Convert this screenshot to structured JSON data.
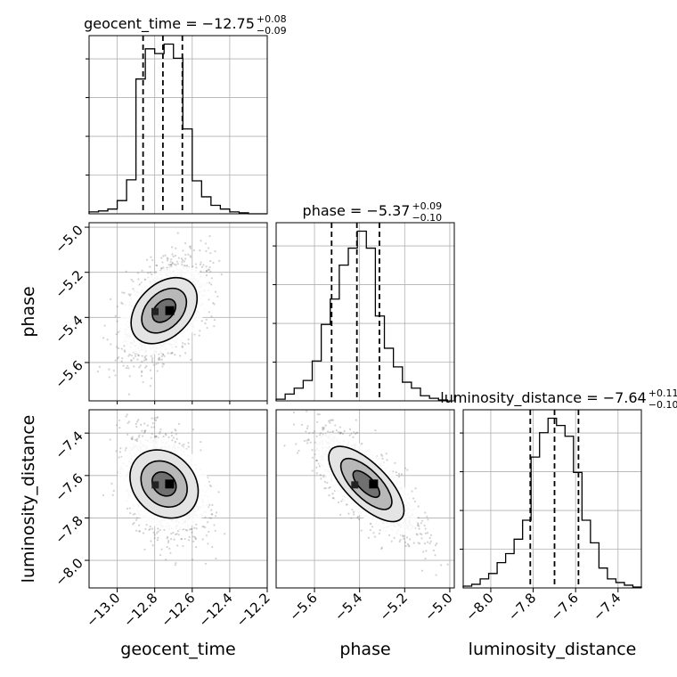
{
  "chart_data": {
    "type": "corner",
    "parameters": [
      "geocent_time",
      "phase",
      "luminosity_distance"
    ],
    "axis_labels": {
      "geocent_time": "geocent_time",
      "phase": "phase",
      "luminosity_distance": "luminosity_distance"
    },
    "ranges": {
      "geocent_time": [
        -13.15,
        -12.2
      ],
      "phase": [
        -5.77,
        -4.98
      ],
      "luminosity_distance": [
        -8.13,
        -7.29
      ]
    },
    "ticks": {
      "geocent_time": [
        -13.0,
        -12.8,
        -12.6,
        -12.4,
        -12.2
      ],
      "phase": [
        -5.6,
        -5.4,
        -5.2,
        -5.0
      ],
      "luminosity_distance": [
        -8.0,
        -7.8,
        -7.6,
        -7.4
      ]
    },
    "tick_labels": {
      "geocent_time": [
        "−13.0",
        "−12.8",
        "−12.6",
        "−12.4",
        "−12.2"
      ],
      "phase": [
        "−5.6",
        "−5.4",
        "−5.2",
        "−5.0"
      ],
      "luminosity_distance": [
        "−8.0",
        "−7.8",
        "−7.6",
        "−7.4"
      ]
    },
    "summaries": {
      "geocent_time": {
        "median": -12.75,
        "plus": 0.08,
        "minus": 0.09,
        "title": "geocent_time = −12.75",
        "sup": "+0.08",
        "sub": "−0.09"
      },
      "phase": {
        "median": -5.37,
        "plus": 0.09,
        "minus": 0.1,
        "title": "phase = −5.37",
        "sup": "+0.09",
        "sub": "−0.10"
      },
      "luminosity_distance": {
        "median": -7.64,
        "plus": 0.11,
        "minus": 0.1,
        "title": "luminosity_distance = −7.64",
        "sup": "+0.11",
        "sub": "−0.10"
      }
    },
    "histograms": {
      "geocent_time": {
        "edges": [
          -13.15,
          -13.1,
          -13.05,
          -13.0,
          -12.95,
          -12.9,
          -12.85,
          -12.8,
          -12.75,
          -12.7,
          -12.65,
          -12.6,
          -12.55,
          -12.5,
          -12.45,
          -12.4,
          -12.35,
          -12.3,
          -12.25,
          -12.2
        ],
        "counts": [
          2,
          3,
          5,
          14,
          36,
          143,
          175,
          170,
          180,
          165,
          90,
          35,
          18,
          9,
          5,
          2,
          1,
          0,
          0
        ]
      },
      "phase": {
        "edges": [
          -5.77,
          -5.73,
          -5.69,
          -5.65,
          -5.61,
          -5.57,
          -5.53,
          -5.49,
          -5.45,
          -5.41,
          -5.37,
          -5.33,
          -5.29,
          -5.25,
          -5.21,
          -5.17,
          -5.13,
          -5.09,
          -5.05,
          -5.01
        ],
        "counts": [
          2,
          8,
          15,
          24,
          47,
          90,
          120,
          160,
          180,
          200,
          180,
          100,
          62,
          40,
          22,
          15,
          6,
          3,
          1
        ]
      },
      "luminosity_distance": {
        "edges": [
          -8.13,
          -8.09,
          -8.05,
          -8.01,
          -7.97,
          -7.93,
          -7.89,
          -7.85,
          -7.81,
          -7.77,
          -7.73,
          -7.69,
          -7.65,
          -7.61,
          -7.57,
          -7.53,
          -7.49,
          -7.45,
          -7.41,
          -7.37,
          -7.33,
          -7.29
        ],
        "counts": [
          2,
          4,
          10,
          16,
          28,
          38,
          54,
          75,
          145,
          172,
          188,
          180,
          168,
          128,
          75,
          50,
          22,
          10,
          6,
          3,
          1
        ]
      }
    },
    "covariances": {
      "geocent_time|phase": 0.45,
      "geocent_time|luminosity_distance": -0.3,
      "phase|luminosity_distance": -0.75
    },
    "grid": true
  }
}
